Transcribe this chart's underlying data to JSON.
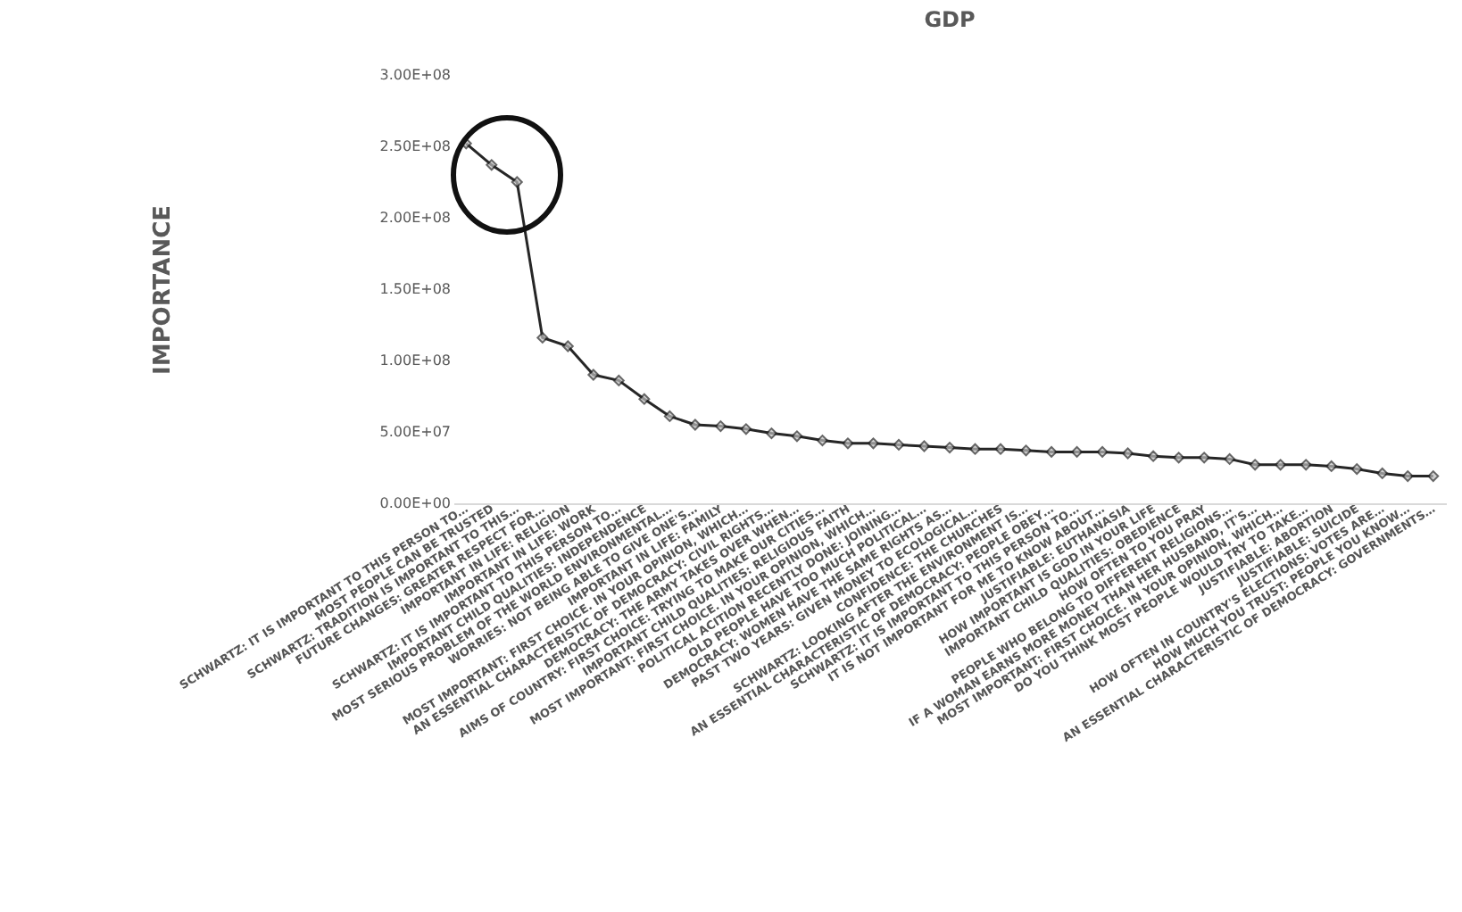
{
  "chart_data": {
    "type": "line",
    "title": "GDP",
    "ylabel": "IMPORTANCE",
    "categories": [
      "SCHWARTZ: IT IS IMPORTANT TO THIS PERSON TO…",
      "MOST PEOPLE CAN BE TRUSTED",
      "SCHWARTZ: TRADITION IS IMPORTANT TO THIS…",
      "FUTURE CHANGES: GREATER RESPECT FOR…",
      "IMPORTANT IN LIFE: RELIGION",
      "IMPORTANT IN LIFE: WORK",
      "SCHWARTZ: IT IS IMPORTANT TO THIS PERSON TO…",
      "IMPORTANT CHILD QUALITIES: INDEPENDENCE",
      "MOST SERIOUS PROBLEM OF THE WORLD ENVIRONMENTAL…",
      "WORRIES: NOT BEING ABLE TO GIVE ONE'S…",
      "IMPORTANT IN LIFE: FAMILY",
      "MOST IMPORTANT: FIRST CHOICE. IN YOUR OPINION, WHICH…",
      "AN ESSENTIAL CHARACTERISTIC OF DEMOCRACY: CIVIL RIGHTS…",
      "DEMOCRACY: THE ARMY TAKES OVER WHEN…",
      "AIMS OF COUNTRY: FIRST CHOICE: TRYING TO MAKE OUR CITIES…",
      "IMPORTANT CHILD QUALITIES: RELIGIOUS FAITH",
      "MOST IMPORTANT: FIRST CHOICE. IN YOUR OPINION, WHICH…",
      "POLITICAL ACITION RECENTLY DONE: JOINING…",
      "OLD PEOPLE HAVE TOO MUCH POLITICAL…",
      "DEMOCRACY: WOMEN HAVE THE SAME RIGHTS AS…",
      "PAST TWO YEARS: GIVEN MONEY TO ECOLOGICAL…",
      "CONFIDENCE: THE CHURCHES",
      "SCHWARTZ: LOOKING AFTER THE ENVIRONMENT IS…",
      "AN ESSENTIAL CHARACTERISTIC OF DEMOCRACY: PEOPLE OBEY…",
      "SCHWARTZ: IT IS IMPORTANT TO THIS PERSON TO…",
      "IT IS NOT IMPORTANT FOR ME TO KNOW ABOUT…",
      "JUSTIFIABLE: EUTHANASIA",
      "HOW IMPORTANT IS GOD IN YOUR LIFE",
      "IMPORTANT CHILD QUALITIES: OBEDIENCE",
      "HOW OFTEN TO YOU PRAY",
      "PEOPLE WHO BELONG TO DIFFERENT RELIGIONS…",
      "IF A WOMAN EARNS MORE MONEY THAN HER HUSBAND, IT'S…",
      "MOST IMPORTANT: FIRST CHOICE. IN YOUR OPINION, WHICH…",
      "DO YOU THINK MOST PEOPLE WOULD TRY TO TAKE…",
      "JUSTIFIABLE: ABORTION",
      "JUSTIFIABLE: SUICIDE",
      "HOW OFTEN IN COUNTRY'S ELECTIONS: VOTES ARE…",
      "HOW MUCH YOU TRUST: PEOPLE YOU KNOW…",
      "AN ESSENTIAL CHARACTERISTIC OF DEMOCRACY: GOVERNMENTS…"
    ],
    "series": [
      {
        "color": "#262626",
        "values": [
          252000000,
          237000000,
          225000000,
          116000000,
          110000000,
          90000000,
          86000000,
          73000000,
          61000000,
          55000000,
          54000000,
          52000000,
          49000000,
          47000000,
          44000000,
          42000000,
          42000000,
          41000000,
          40000000,
          39000000,
          38000000,
          38000000,
          37000000,
          36000000,
          36000000,
          36000000,
          35000000,
          33000000,
          32000000,
          32000000,
          31000000,
          27000000,
          27000000,
          27000000,
          26000000,
          24000000,
          21000000,
          19000000,
          19000000
        ]
      }
    ],
    "ylim": [
      0,
      300000000
    ],
    "yticks": [
      {
        "value": 0,
        "label": "0.00E+00"
      },
      {
        "value": 50000000,
        "label": "5.00E+07"
      },
      {
        "value": 100000000,
        "label": "1.00E+08"
      },
      {
        "value": 150000000,
        "label": "1.50E+08"
      },
      {
        "value": 200000000,
        "label": "2.00E+08"
      },
      {
        "value": 250000000,
        "label": "2.50E+08"
      },
      {
        "value": 300000000,
        "label": "3.00E+08"
      }
    ],
    "grid": false,
    "marker": "diamond",
    "line_style": "solid"
  }
}
